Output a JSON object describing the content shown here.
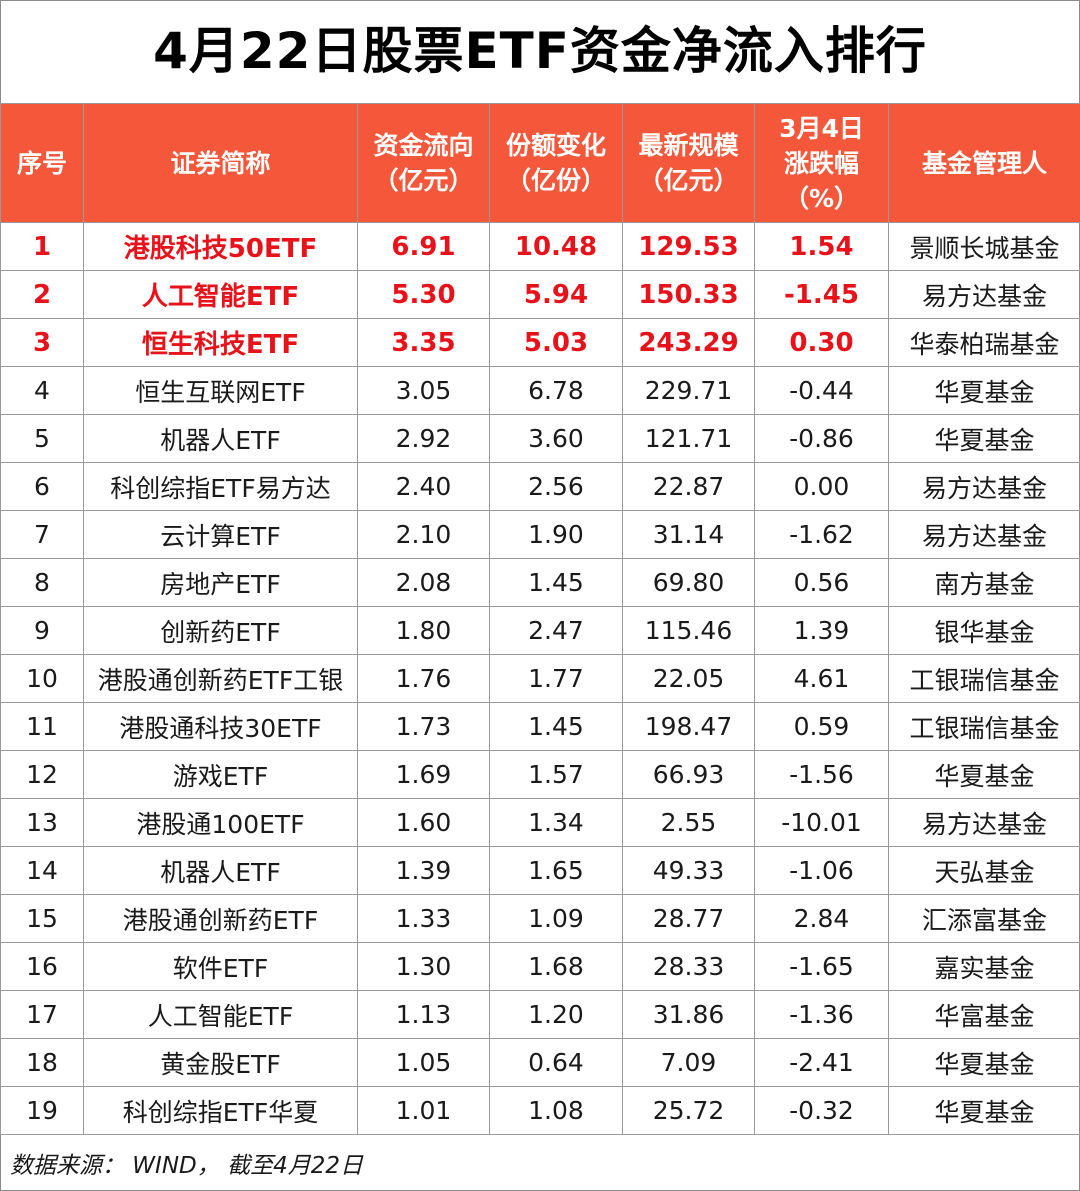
{
  "title": "4月22日股票ETF资金净流入排行",
  "headers": {
    "rank": "序号",
    "name": "证券简称",
    "flow": [
      "资金流向",
      "（亿元）"
    ],
    "shares": [
      "份额变化",
      "（亿份）"
    ],
    "scale": [
      "最新规模",
      "（亿元）"
    ],
    "change": [
      "3月4日",
      "涨跌幅",
      "（%）"
    ],
    "manager": "基金管理人"
  },
  "rows": [
    {
      "rank": "1",
      "name": "港股科技50ETF",
      "flow": "6.91",
      "shares": "10.48",
      "scale": "129.53",
      "change": "1.54",
      "manager": "景顺长城基金",
      "highlight": true
    },
    {
      "rank": "2",
      "name": "人工智能ETF",
      "flow": "5.30",
      "shares": "5.94",
      "scale": "150.33",
      "change": "-1.45",
      "manager": "易方达基金",
      "highlight": true
    },
    {
      "rank": "3",
      "name": "恒生科技ETF",
      "flow": "3.35",
      "shares": "5.03",
      "scale": "243.29",
      "change": "0.30",
      "manager": "华泰柏瑞基金",
      "highlight": true
    },
    {
      "rank": "4",
      "name": "恒生互联网ETF",
      "flow": "3.05",
      "shares": "6.78",
      "scale": "229.71",
      "change": "-0.44",
      "manager": "华夏基金",
      "highlight": false
    },
    {
      "rank": "5",
      "name": "机器人ETF",
      "flow": "2.92",
      "shares": "3.60",
      "scale": "121.71",
      "change": "-0.86",
      "manager": "华夏基金",
      "highlight": false
    },
    {
      "rank": "6",
      "name": "科创综指ETF易方达",
      "flow": "2.40",
      "shares": "2.56",
      "scale": "22.87",
      "change": "0.00",
      "manager": "易方达基金",
      "highlight": false
    },
    {
      "rank": "7",
      "name": "云计算ETF",
      "flow": "2.10",
      "shares": "1.90",
      "scale": "31.14",
      "change": "-1.62",
      "manager": "易方达基金",
      "highlight": false
    },
    {
      "rank": "8",
      "name": "房地产ETF",
      "flow": "2.08",
      "shares": "1.45",
      "scale": "69.80",
      "change": "0.56",
      "manager": "南方基金",
      "highlight": false
    },
    {
      "rank": "9",
      "name": "创新药ETF",
      "flow": "1.80",
      "shares": "2.47",
      "scale": "115.46",
      "change": "1.39",
      "manager": "银华基金",
      "highlight": false
    },
    {
      "rank": "10",
      "name": "港股通创新药ETF工银",
      "flow": "1.76",
      "shares": "1.77",
      "scale": "22.05",
      "change": "4.61",
      "manager": "工银瑞信基金",
      "highlight": false
    },
    {
      "rank": "11",
      "name": "港股通科技30ETF",
      "flow": "1.73",
      "shares": "1.45",
      "scale": "198.47",
      "change": "0.59",
      "manager": "工银瑞信基金",
      "highlight": false
    },
    {
      "rank": "12",
      "name": "游戏ETF",
      "flow": "1.69",
      "shares": "1.57",
      "scale": "66.93",
      "change": "-1.56",
      "manager": "华夏基金",
      "highlight": false
    },
    {
      "rank": "13",
      "name": "港股通100ETF",
      "flow": "1.60",
      "shares": "1.34",
      "scale": "2.55",
      "change": "-10.01",
      "manager": "易方达基金",
      "highlight": false
    },
    {
      "rank": "14",
      "name": "机器人ETF",
      "flow": "1.39",
      "shares": "1.65",
      "scale": "49.33",
      "change": "-1.06",
      "manager": "天弘基金",
      "highlight": false
    },
    {
      "rank": "15",
      "name": "港股通创新药ETF",
      "flow": "1.33",
      "shares": "1.09",
      "scale": "28.77",
      "change": "2.84",
      "manager": "汇添富基金",
      "highlight": false
    },
    {
      "rank": "16",
      "name": "软件ETF",
      "flow": "1.30",
      "shares": "1.68",
      "scale": "28.33",
      "change": "-1.65",
      "manager": "嘉实基金",
      "highlight": false
    },
    {
      "rank": "17",
      "name": "人工智能ETF",
      "flow": "1.13",
      "shares": "1.20",
      "scale": "31.86",
      "change": "-1.36",
      "manager": "华富基金",
      "highlight": false
    },
    {
      "rank": "18",
      "name": "黄金股ETF",
      "flow": "1.05",
      "shares": "0.64",
      "scale": "7.09",
      "change": "-2.41",
      "manager": "华夏基金",
      "highlight": false
    },
    {
      "rank": "19",
      "name": "科创综指ETF华夏",
      "flow": "1.01",
      "shares": "1.08",
      "scale": "25.72",
      "change": "-0.32",
      "manager": "华夏基金",
      "highlight": false
    }
  ],
  "source": "数据来源： WIND，  截至4月22日",
  "colors": {
    "header_bg": "#f4573a",
    "highlight_text": "#e8121a",
    "border": "#9a9a9a"
  }
}
